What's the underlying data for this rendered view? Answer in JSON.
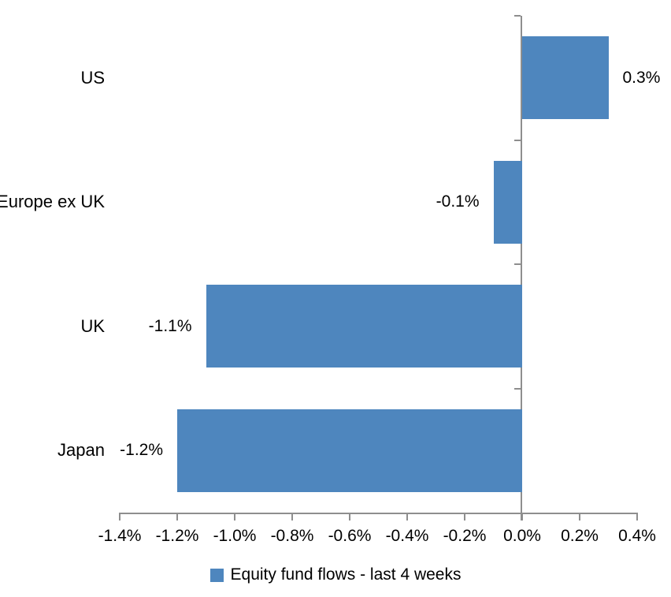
{
  "chart_data": {
    "type": "bar",
    "orientation": "horizontal",
    "title": "",
    "xlabel": "",
    "ylabel": "",
    "categories": [
      "US",
      "Europe ex UK",
      "UK",
      "Japan"
    ],
    "series": [
      {
        "name": "Equity fund flows - last 4 weeks",
        "values": [
          0.3,
          -0.1,
          -1.1,
          -1.2
        ],
        "labels": [
          "0.3%",
          "-0.1%",
          "-1.1%",
          "-1.2%"
        ]
      }
    ],
    "x_ticks": [
      "-1.4%",
      "-1.2%",
      "-1.0%",
      "-0.8%",
      "-0.6%",
      "-0.4%",
      "-0.2%",
      "0.0%",
      "0.2%",
      "0.4%"
    ],
    "x_tick_values": [
      -1.4,
      -1.2,
      -1.0,
      -0.8,
      -0.6,
      -0.4,
      -0.2,
      0.0,
      0.2,
      0.4
    ],
    "xlim": [
      -1.4,
      0.4
    ],
    "grid": false,
    "legend": {
      "position": "bottom",
      "entries": [
        "Equity fund flows - last 4 weeks"
      ]
    },
    "colors": {
      "bar": "#4E86BE",
      "axis": "#8E8E8E",
      "text": "#000000",
      "background": "#FFFFFF"
    }
  }
}
